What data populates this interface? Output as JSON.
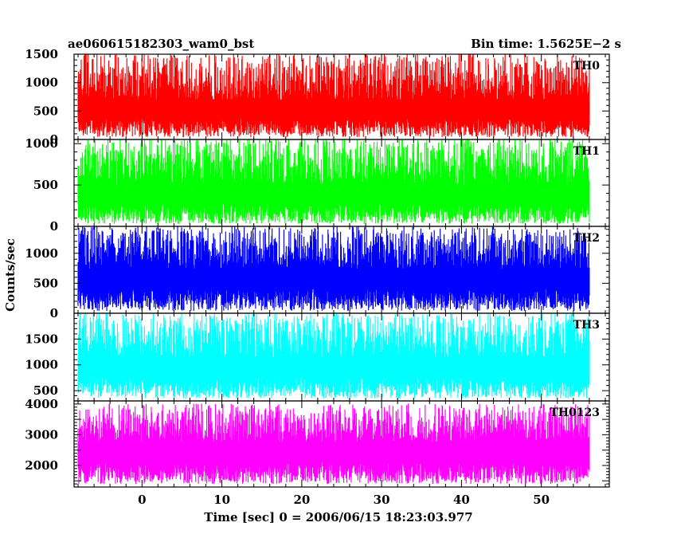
{
  "header": {
    "title": "ae060615182303_wam0_bst",
    "bin_time": "Bin time: 1.5625E−2 s"
  },
  "chart_data": {
    "type": "line",
    "title": "ae060615182303_wam0_bst",
    "xlabel": "Time [sec] 0 = 2006/06/15 18:23:03.977",
    "ylabel": "Counts/sec",
    "xlim": [
      -8.5,
      58.5
    ],
    "data_xrange": [
      -8.0,
      56.0
    ],
    "x_ticks": [
      0,
      10,
      20,
      30,
      40,
      50
    ],
    "panels": [
      {
        "name": "TH0",
        "color": "#ff0000",
        "ylim": [
          0,
          1500
        ],
        "y_ticks": [
          0,
          500,
          1000,
          1500
        ],
        "baseline": 650,
        "low": 40,
        "high": 1480
      },
      {
        "name": "TH1",
        "color": "#00ff00",
        "ylim": [
          0,
          1050
        ],
        "y_ticks": [
          0,
          500,
          1000
        ],
        "baseline": 470,
        "low": 30,
        "high": 1040
      },
      {
        "name": "TH2",
        "color": "#0000ff",
        "ylim": [
          0,
          1450
        ],
        "y_ticks": [
          0,
          500,
          1000
        ],
        "baseline": 700,
        "low": 40,
        "high": 1420
      },
      {
        "name": "TH3",
        "color": "#00ffff",
        "ylim": [
          300,
          2000
        ],
        "y_ticks": [
          500,
          1000,
          1500
        ],
        "baseline": 1100,
        "low": 350,
        "high": 1980
      },
      {
        "name": "TH0123",
        "color": "#ff00ff",
        "ylim": [
          1300,
          4100
        ],
        "y_ticks": [
          2000,
          3000,
          4000
        ],
        "baseline": 2700,
        "low": 1400,
        "high": 3950
      }
    ]
  }
}
